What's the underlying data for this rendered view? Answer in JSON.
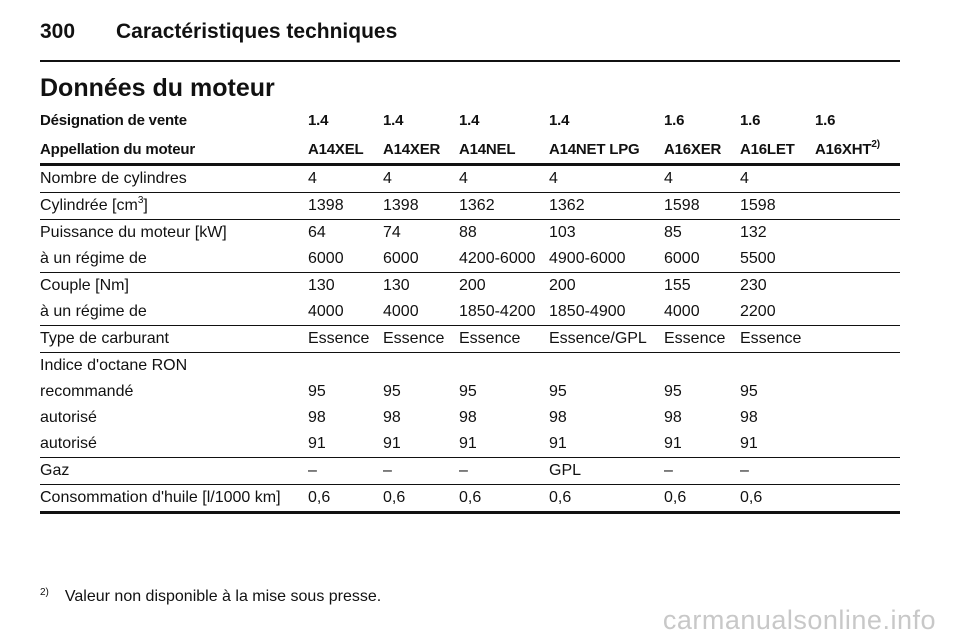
{
  "header": {
    "page_number": "300",
    "title": "Caractéristiques techniques"
  },
  "section_title": "Données du moteur",
  "table": {
    "designation_label": "Désignation de vente",
    "designations": [
      "1.4",
      "1.4",
      "1.4",
      "1.4",
      "1.6",
      "1.6",
      "1.6"
    ],
    "engine_label": "Appellation du moteur",
    "engines": [
      "A14XEL",
      "A14XER",
      "A14NEL",
      "A14NET LPG",
      "A16XER",
      "A16LET",
      "A16XHT"
    ],
    "engine_last_footnote": "2)",
    "cylinders": {
      "label": "Nombre de cylindres",
      "values": [
        "4",
        "4",
        "4",
        "4",
        "4",
        "4"
      ]
    },
    "displacement": {
      "label_prefix": "Cylindrée [cm",
      "label_sup": "3",
      "label_suffix": "]",
      "values": [
        "1398",
        "1398",
        "1362",
        "1362",
        "1598",
        "1598"
      ]
    },
    "power": {
      "label": "Puissance du moteur [kW]",
      "values": [
        "64",
        "74",
        "88",
        "103",
        "85",
        "132"
      ]
    },
    "power_rpm": {
      "label": "à un régime de",
      "values": [
        "6000",
        "6000",
        "4200-6000",
        "4900-6000",
        "6000",
        "5500"
      ]
    },
    "torque": {
      "label": "Couple [Nm]",
      "values": [
        "130",
        "130",
        "200",
        "200",
        "155",
        "230"
      ]
    },
    "torque_rpm": {
      "label": "à un régime de",
      "values": [
        "4000",
        "4000",
        "1850-4200",
        "1850-4900",
        "4000",
        "2200"
      ]
    },
    "fuel_type": {
      "label": "Type de carburant",
      "values": [
        "Essence",
        "Essence",
        "Essence",
        "Essence/GPL",
        "Essence",
        "Essence"
      ]
    },
    "octane_heading": "Indice d'octane RON",
    "octane_recommended": {
      "label": "recommandé",
      "values": [
        "95",
        "95",
        "95",
        "95",
        "95",
        "95"
      ]
    },
    "octane_allowed_1": {
      "label": "autorisé",
      "values": [
        "98",
        "98",
        "98",
        "98",
        "98",
        "98"
      ]
    },
    "octane_allowed_2": {
      "label": "autorisé",
      "values": [
        "91",
        "91",
        "91",
        "91",
        "91",
        "91"
      ]
    },
    "gas": {
      "label": "Gaz",
      "values": [
        "–",
        "–",
        "–",
        "GPL",
        "–",
        "–"
      ]
    },
    "oil": {
      "label": "Consommation d'huile [l/1000 km]",
      "values": [
        "0,6",
        "0,6",
        "0,6",
        "0,6",
        "0,6",
        "0,6"
      ]
    }
  },
  "footnote": {
    "mark": "2)",
    "text": "Valeur non disponible à la mise sous presse."
  },
  "watermark": "carmanualsonline.info"
}
